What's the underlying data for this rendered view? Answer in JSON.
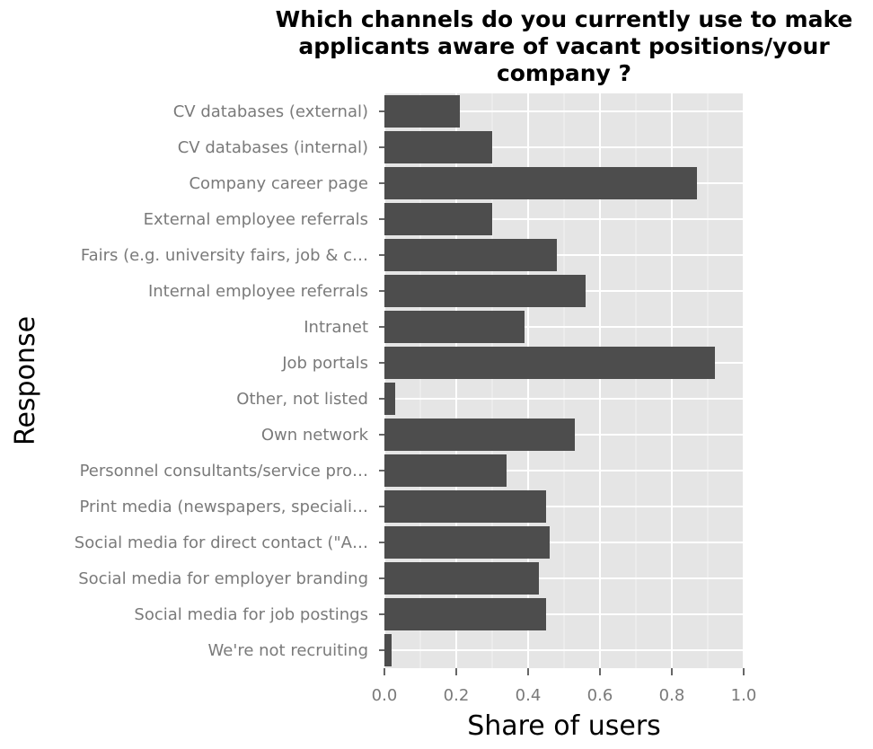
{
  "chart_data": {
    "type": "bar",
    "orientation": "horizontal",
    "title_lines": [
      "Which channels do you currently use to make",
      "applicants aware of vacant positions/your",
      "company ?"
    ],
    "xlabel": "Share of users",
    "ylabel": "Response",
    "xlim": [
      0,
      1.0
    ],
    "xticks": [
      "0.0",
      "0.2",
      "0.4",
      "0.6",
      "0.8",
      "1.0"
    ],
    "xtick_values": [
      0,
      0.2,
      0.4,
      0.6,
      0.8,
      1.0
    ],
    "grid": true,
    "bar_color": "#4d4d4d",
    "panel_color": "#e5e5e5",
    "categories": [
      "CV databases (external)",
      "CV databases (internal)",
      "Company career page",
      "External employee referrals",
      "Fairs (e.g. university fairs, job & c…",
      "Internal employee referrals",
      "Intranet",
      "Job portals",
      "Other, not listed",
      "Own network",
      "Personnel consultants/service pro…",
      "Print media (newspapers, speciali…",
      "Social media for direct contact (\"A…",
      "Social media for employer branding",
      "Social media for job postings",
      "We're not recruiting"
    ],
    "values": [
      0.21,
      0.3,
      0.87,
      0.3,
      0.48,
      0.56,
      0.39,
      0.92,
      0.03,
      0.53,
      0.34,
      0.45,
      0.46,
      0.43,
      0.45,
      0.02
    ]
  }
}
